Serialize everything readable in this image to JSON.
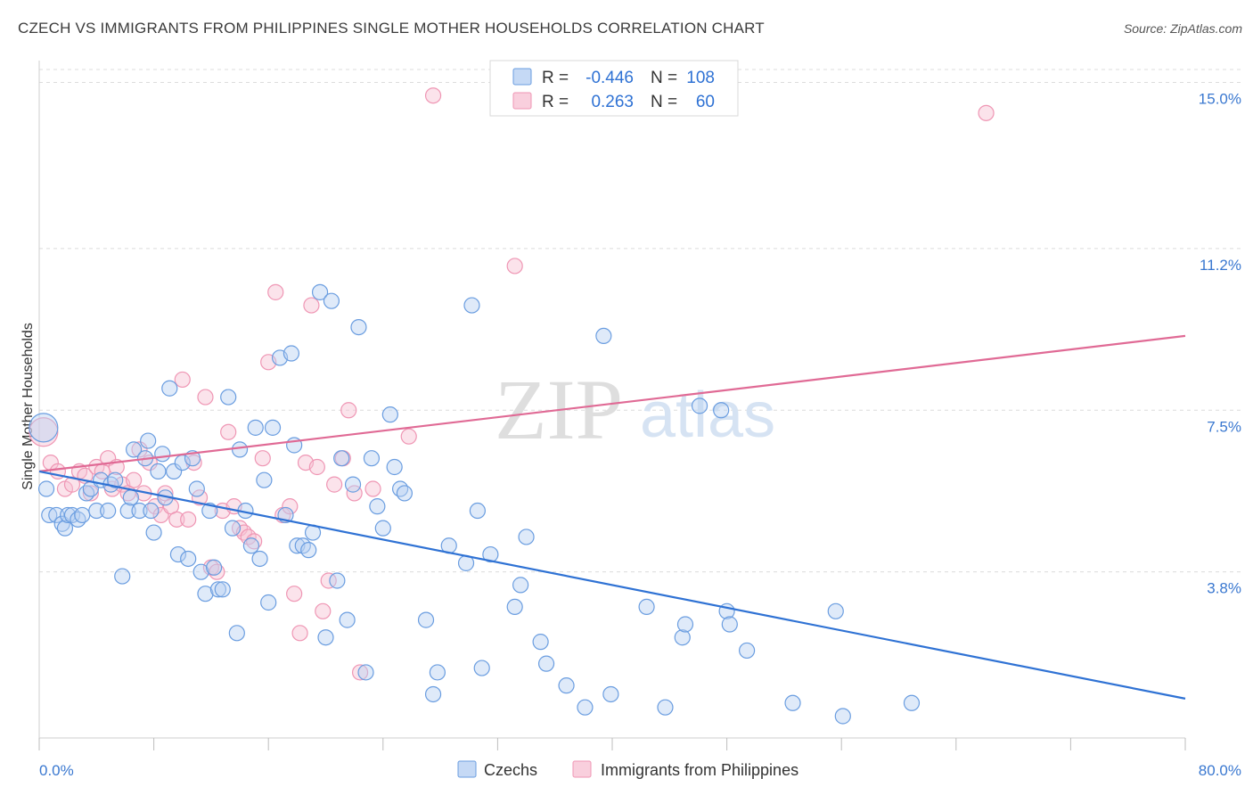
{
  "header": {
    "title": "CZECH VS IMMIGRANTS FROM PHILIPPINES SINGLE MOTHER HOUSEHOLDS CORRELATION CHART",
    "source": "Source: ZipAtlas.com"
  },
  "watermark": {
    "zip": "ZIP",
    "atlas": "atlas"
  },
  "legend_box": {
    "rows": [
      {
        "r_label": "R =",
        "r_value": "-0.446",
        "n_label": "N =",
        "n_value": "108"
      },
      {
        "r_label": "R =",
        "r_value": "0.263",
        "n_label": "N =",
        "n_value": "60"
      }
    ]
  },
  "chart_data": {
    "type": "scatter",
    "title": "CZECH VS IMMIGRANTS FROM PHILIPPINES SINGLE MOTHER HOUSEHOLDS CORRELATION CHART",
    "ylabel": "Single Mother Households",
    "xlabel": "",
    "xlim": [
      0,
      80
    ],
    "ylim": [
      0,
      15.5
    ],
    "x_tick_labels": [
      "0.0%",
      "80.0%"
    ],
    "y_ticks": [
      3.8,
      7.5,
      11.2,
      15.0
    ],
    "y_tick_labels": [
      "3.8%",
      "7.5%",
      "11.2%",
      "15.0%"
    ],
    "grid": true,
    "legend_position": "bottom",
    "colors": {
      "czechs": "#6a9de0",
      "philippines": "#ef96b4",
      "czech_line": "#2f72d4",
      "phil_line": "#e06a95",
      "tick_text": "#3a78d0"
    },
    "series": [
      {
        "name": "Czechs",
        "r": -0.446,
        "n": 108,
        "trend": [
          [
            0,
            6.1
          ],
          [
            80,
            0.9
          ]
        ],
        "points": [
          [
            0.3,
            7.1
          ],
          [
            0.5,
            5.7
          ],
          [
            0.7,
            5.1
          ],
          [
            1.2,
            5.1
          ],
          [
            1.6,
            4.9
          ],
          [
            1.8,
            4.8
          ],
          [
            2.0,
            5.1
          ],
          [
            2.3,
            5.1
          ],
          [
            2.7,
            5.0
          ],
          [
            3.0,
            5.1
          ],
          [
            3.3,
            5.6
          ],
          [
            3.6,
            5.7
          ],
          [
            4.0,
            5.2
          ],
          [
            4.3,
            5.9
          ],
          [
            4.8,
            5.2
          ],
          [
            5.0,
            5.8
          ],
          [
            5.3,
            5.9
          ],
          [
            5.8,
            3.7
          ],
          [
            6.2,
            5.2
          ],
          [
            6.4,
            5.5
          ],
          [
            6.6,
            6.6
          ],
          [
            7.0,
            5.2
          ],
          [
            7.4,
            6.4
          ],
          [
            7.6,
            6.8
          ],
          [
            7.8,
            5.2
          ],
          [
            8.0,
            4.7
          ],
          [
            8.3,
            6.1
          ],
          [
            8.6,
            6.5
          ],
          [
            8.8,
            5.5
          ],
          [
            9.1,
            8.0
          ],
          [
            9.4,
            6.1
          ],
          [
            9.7,
            4.2
          ],
          [
            10.0,
            6.3
          ],
          [
            10.4,
            4.1
          ],
          [
            10.7,
            6.4
          ],
          [
            11.0,
            5.7
          ],
          [
            11.3,
            3.8
          ],
          [
            11.6,
            3.3
          ],
          [
            11.9,
            5.2
          ],
          [
            12.2,
            3.9
          ],
          [
            12.5,
            3.4
          ],
          [
            12.8,
            3.4
          ],
          [
            13.2,
            7.8
          ],
          [
            13.5,
            4.8
          ],
          [
            13.8,
            2.4
          ],
          [
            14.0,
            6.6
          ],
          [
            14.4,
            5.2
          ],
          [
            14.8,
            4.4
          ],
          [
            15.1,
            7.1
          ],
          [
            15.4,
            4.1
          ],
          [
            15.7,
            5.9
          ],
          [
            16.0,
            3.1
          ],
          [
            16.3,
            7.1
          ],
          [
            16.8,
            8.7
          ],
          [
            17.2,
            5.1
          ],
          [
            17.6,
            8.8
          ],
          [
            17.8,
            6.7
          ],
          [
            18.0,
            4.4
          ],
          [
            18.4,
            4.4
          ],
          [
            18.8,
            4.3
          ],
          [
            19.1,
            4.7
          ],
          [
            19.6,
            10.2
          ],
          [
            20.0,
            2.3
          ],
          [
            20.4,
            10.0
          ],
          [
            20.8,
            3.6
          ],
          [
            21.1,
            6.4
          ],
          [
            21.5,
            2.7
          ],
          [
            21.9,
            5.8
          ],
          [
            22.3,
            9.4
          ],
          [
            22.8,
            1.5
          ],
          [
            23.2,
            6.4
          ],
          [
            23.6,
            5.3
          ],
          [
            24.0,
            4.8
          ],
          [
            24.5,
            7.4
          ],
          [
            24.8,
            6.2
          ],
          [
            25.2,
            5.7
          ],
          [
            25.5,
            5.6
          ],
          [
            27.0,
            2.7
          ],
          [
            27.5,
            1.0
          ],
          [
            27.8,
            1.5
          ],
          [
            28.6,
            4.4
          ],
          [
            29.8,
            4.0
          ],
          [
            30.2,
            9.9
          ],
          [
            30.6,
            5.2
          ],
          [
            30.9,
            1.6
          ],
          [
            31.5,
            4.2
          ],
          [
            33.2,
            3.0
          ],
          [
            33.6,
            3.5
          ],
          [
            34.0,
            4.6
          ],
          [
            35.0,
            2.2
          ],
          [
            35.4,
            1.7
          ],
          [
            36.8,
            1.2
          ],
          [
            38.1,
            0.7
          ],
          [
            39.4,
            9.2
          ],
          [
            39.9,
            1.0
          ],
          [
            42.4,
            3.0
          ],
          [
            43.7,
            0.7
          ],
          [
            44.9,
            2.3
          ],
          [
            45.1,
            2.6
          ],
          [
            46.1,
            7.6
          ],
          [
            47.6,
            7.5
          ],
          [
            48.0,
            2.9
          ],
          [
            48.2,
            2.6
          ],
          [
            49.4,
            2.0
          ],
          [
            52.6,
            0.8
          ],
          [
            55.6,
            2.9
          ],
          [
            56.1,
            0.5
          ],
          [
            60.9,
            0.8
          ]
        ]
      },
      {
        "name": "Immigrants from Philippines",
        "r": 0.263,
        "n": 60,
        "trend": [
          [
            0,
            6.1
          ],
          [
            80,
            9.2
          ]
        ],
        "points": [
          [
            0.3,
            7.0
          ],
          [
            0.8,
            6.3
          ],
          [
            1.3,
            6.1
          ],
          [
            1.8,
            5.7
          ],
          [
            2.3,
            5.8
          ],
          [
            2.8,
            6.1
          ],
          [
            3.2,
            6.0
          ],
          [
            3.6,
            5.6
          ],
          [
            4.0,
            6.2
          ],
          [
            4.4,
            6.1
          ],
          [
            4.8,
            6.4
          ],
          [
            5.1,
            5.7
          ],
          [
            5.4,
            6.2
          ],
          [
            5.8,
            5.8
          ],
          [
            6.2,
            5.6
          ],
          [
            6.6,
            5.9
          ],
          [
            7.0,
            6.6
          ],
          [
            7.3,
            5.6
          ],
          [
            7.7,
            6.3
          ],
          [
            8.1,
            5.3
          ],
          [
            8.5,
            5.1
          ],
          [
            8.8,
            5.6
          ],
          [
            9.2,
            5.3
          ],
          [
            9.6,
            5.0
          ],
          [
            10.0,
            8.2
          ],
          [
            10.4,
            5.0
          ],
          [
            10.8,
            6.3
          ],
          [
            11.2,
            5.5
          ],
          [
            11.6,
            7.8
          ],
          [
            12.0,
            3.9
          ],
          [
            12.4,
            3.8
          ],
          [
            12.8,
            5.2
          ],
          [
            13.2,
            7.0
          ],
          [
            13.6,
            5.3
          ],
          [
            14.0,
            4.8
          ],
          [
            14.3,
            4.7
          ],
          [
            14.6,
            4.6
          ],
          [
            15.0,
            4.5
          ],
          [
            15.6,
            6.4
          ],
          [
            16.0,
            8.6
          ],
          [
            16.5,
            10.2
          ],
          [
            17.0,
            5.1
          ],
          [
            17.5,
            5.3
          ],
          [
            17.8,
            3.3
          ],
          [
            18.2,
            2.4
          ],
          [
            18.6,
            6.3
          ],
          [
            19.0,
            9.9
          ],
          [
            19.4,
            6.2
          ],
          [
            19.8,
            2.9
          ],
          [
            20.2,
            3.6
          ],
          [
            20.6,
            5.8
          ],
          [
            21.2,
            6.4
          ],
          [
            21.6,
            7.5
          ],
          [
            22.0,
            5.6
          ],
          [
            22.4,
            1.5
          ],
          [
            23.3,
            5.7
          ],
          [
            25.8,
            6.9
          ],
          [
            27.5,
            14.7
          ],
          [
            33.2,
            10.8
          ],
          [
            66.1,
            14.3
          ]
        ]
      }
    ]
  }
}
